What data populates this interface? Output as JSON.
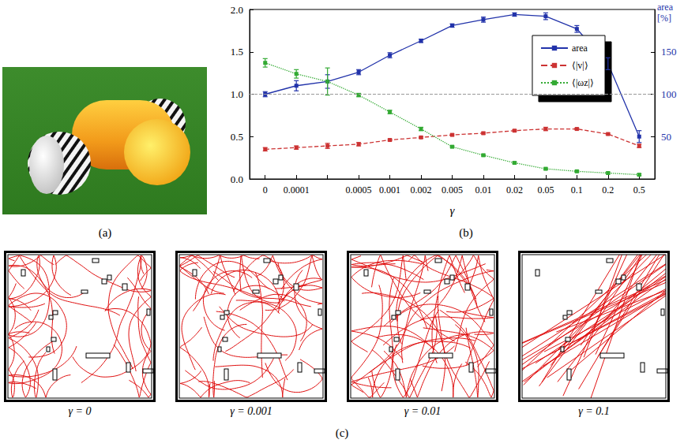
{
  "figure": {
    "panel_labels": [
      "(a)",
      "(b)",
      "(c)"
    ],
    "panel_c_captions": [
      "γ = 0",
      "γ = 0.001",
      "γ = 0.01",
      "γ = 0.1"
    ]
  },
  "chart_data": {
    "type": "line",
    "x_label": "γ",
    "y2_label": "area [%]",
    "categories": [
      "0",
      "0.0001",
      null,
      "0.0005",
      "0.001",
      "0.002",
      "0.005",
      "0.01",
      "0.02",
      "0.05",
      "0.1",
      "0.2",
      "0.5"
    ],
    "ylim": [
      0,
      2
    ],
    "yticks": [
      {
        "value": 0,
        "label": "0.0"
      },
      {
        "value": 0.5,
        "label": "0.5"
      },
      {
        "value": 1,
        "label": "1.0"
      },
      {
        "value": 1.5,
        "label": "1.5"
      },
      {
        "value": 2,
        "label": "2.0"
      }
    ],
    "y2lim": [
      0,
      200
    ],
    "y2ticks": [
      50,
      100,
      150
    ],
    "grid": false,
    "legend": "upper right",
    "reference_line": 1,
    "series": [
      {
        "name": "area",
        "color": "#2233aa",
        "line_style": "solid",
        "marker": "square",
        "axis": "y2",
        "values": [
          100,
          110,
          115,
          126,
          146,
          163,
          181,
          188,
          194,
          192,
          177,
          136,
          50
        ],
        "errors": [
          3,
          6,
          8,
          3,
          3,
          2,
          2,
          3,
          2,
          4,
          4,
          7,
          7
        ]
      },
      {
        "name": "⟨|v|⟩",
        "color": "#cc3333",
        "line_style": "dashed",
        "marker": "square",
        "values": [
          0.35,
          0.37,
          0.39,
          0.41,
          0.46,
          0.49,
          0.52,
          0.54,
          0.57,
          0.59,
          0.59,
          0.53,
          0.39
        ],
        "errors": [
          0.02,
          0.02,
          0.03,
          0.02,
          0.01,
          0.01,
          0.01,
          0.01,
          0.01,
          0.02,
          0.01,
          0.01,
          0.02
        ]
      },
      {
        "name": "⟨|ωz|⟩",
        "color": "#33aa33",
        "line_style": "dotted",
        "marker": "square",
        "values": [
          1.37,
          1.24,
          1.15,
          0.99,
          0.79,
          0.59,
          0.38,
          0.28,
          0.19,
          0.12,
          0.09,
          0.07,
          0.05
        ],
        "errors": [
          0.05,
          0.05,
          0.16,
          0.02,
          0.02,
          0.02,
          0.01,
          0.01,
          0.01,
          0.01,
          0.01,
          0.01,
          0.01
        ]
      }
    ]
  }
}
